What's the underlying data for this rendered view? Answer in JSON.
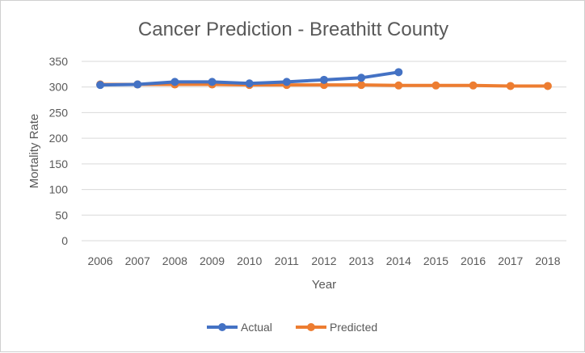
{
  "chart_data": {
    "type": "line",
    "title": "Cancer Prediction - Breathitt County",
    "xlabel": "Year",
    "ylabel": "Mortality Rate",
    "categories": [
      "2006",
      "2007",
      "2008",
      "2009",
      "2010",
      "2011",
      "2012",
      "2013",
      "2014",
      "2015",
      "2016",
      "2017",
      "2018"
    ],
    "ylim": [
      0,
      350
    ],
    "yticks": [
      0,
      50,
      100,
      150,
      200,
      250,
      300,
      350
    ],
    "grid": true,
    "legend_position": "bottom",
    "series": [
      {
        "name": "Actual",
        "color": "#4472C4",
        "values": [
          304,
          305,
          310,
          310,
          307,
          310,
          314,
          318,
          329,
          null,
          null,
          null,
          null
        ]
      },
      {
        "name": "Predicted",
        "color": "#ED7D31",
        "values": [
          305,
          305,
          305,
          305,
          304,
          304,
          304,
          304,
          303,
          303,
          303,
          302,
          302
        ]
      }
    ]
  }
}
